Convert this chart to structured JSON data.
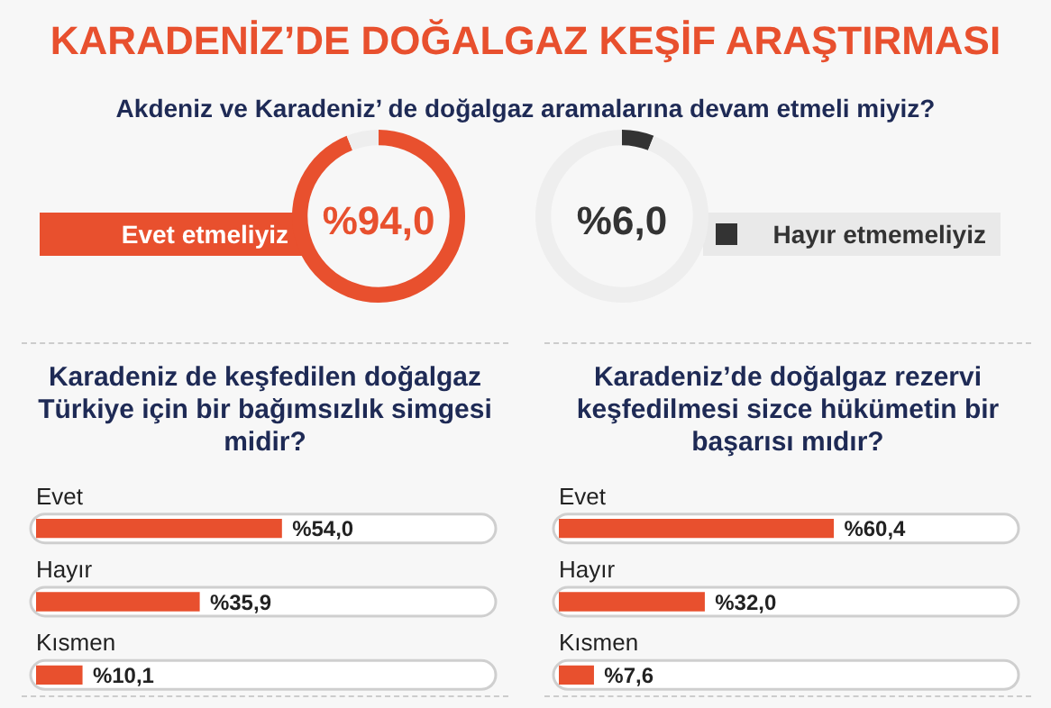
{
  "chart_data": [
    {
      "type": "donut",
      "title": "KARADENİZ’DE DOĞALGAZ KEŞİF ARAŞTIRMASI",
      "subtitle": "Akdeniz ve Karadeniz’ de doğalgaz aramalarına devam etmeli miyiz?",
      "categories": [
        "Evet etmeliyiz",
        null
      ],
      "values": [
        94.0,
        6.0
      ],
      "colors": [
        "#e8502e",
        "#eeeeee"
      ],
      "value_labels": [
        "%94,0",
        null
      ],
      "legend": false
    },
    {
      "type": "donut",
      "categories": [
        "Hayır etmemeliyiz",
        null
      ],
      "values": [
        6.0,
        94.0
      ],
      "colors": [
        "#333333",
        "#eeeeee"
      ],
      "value_labels": [
        "%6,0",
        null
      ],
      "legend": "right"
    },
    {
      "type": "bar",
      "orientation": "horizontal",
      "title": "Karadeniz de keşfedilen doğalgaz Türkiye için bir bağımsızlık simgesi midir?",
      "categories": [
        "Evet",
        "Hayır",
        "Kısmen"
      ],
      "values": [
        54.0,
        35.9,
        10.1
      ],
      "color": "#e8502e",
      "value_labels": [
        "%54,0",
        "%35,9",
        "%10,1"
      ],
      "xlim": [
        0,
        100
      ],
      "tick_labels": "y",
      "legend": false
    },
    {
      "type": "bar",
      "orientation": "horizontal",
      "title": "Karadeniz’de doğalgaz rezervi keşfedilmesi sizce hükümetin bir başarısı mıdır?",
      "categories": [
        "Evet",
        "Hayır",
        "Kısmen"
      ],
      "values": [
        60.4,
        32.0,
        7.6
      ],
      "color": "#e8502e",
      "value_labels": [
        "%60,4",
        "%32,0",
        "%7,6"
      ],
      "xlim": [
        0,
        100
      ],
      "tick_labels": "y",
      "legend": false
    }
  ]
}
